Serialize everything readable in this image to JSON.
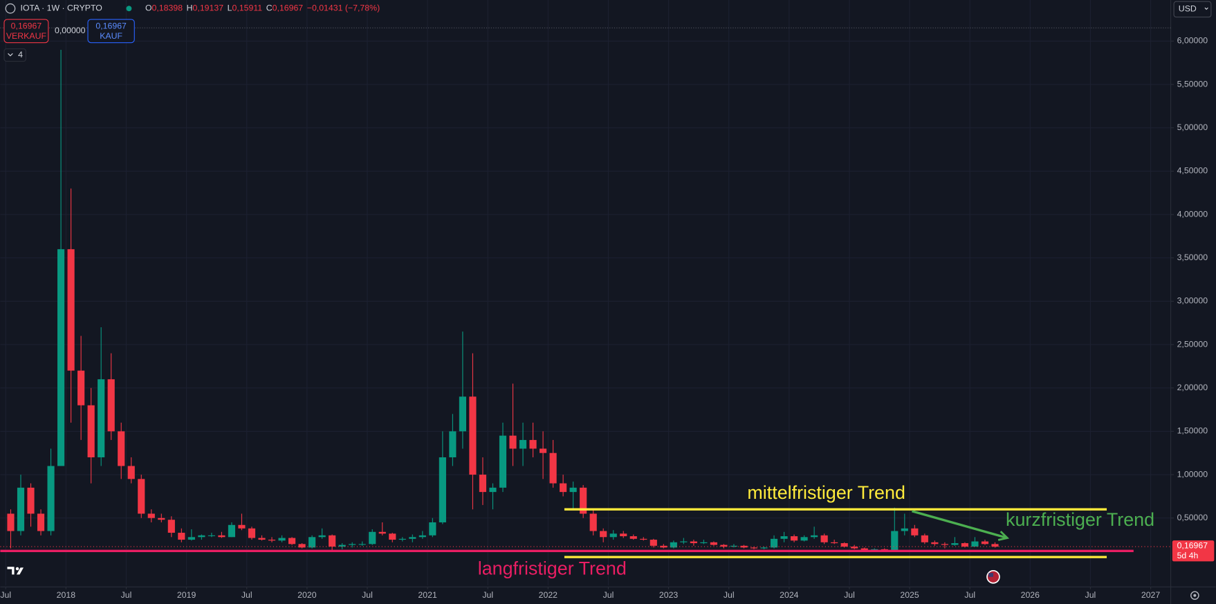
{
  "header": {
    "symbol": "IOTA · 1W · CRYPTO",
    "ohlc": [
      {
        "key": "O",
        "value": "0,18398"
      },
      {
        "key": "H",
        "value": "0,19137"
      },
      {
        "key": "L",
        "value": "0,15911"
      },
      {
        "key": "C",
        "value": "0,16967"
      }
    ],
    "change": "−0,01431 (−7,78%)",
    "sell": {
      "price": "0,16967",
      "label": "VERKAUF"
    },
    "spread": "0,00000",
    "buy": {
      "price": "0,16967",
      "label": "KAUF"
    },
    "indicators": "4",
    "currency": "USD"
  },
  "chart_data": {
    "type": "candlestick",
    "up_color": "#089981",
    "down_color": "#f23645",
    "grid": true,
    "xlim": [
      "2017-06-15",
      "2027-03-01"
    ],
    "xticks": [
      {
        "value": "2017-07-01",
        "label": "Jul"
      },
      {
        "value": "2018-01-01",
        "label": "2018"
      },
      {
        "value": "2018-07-01",
        "label": "Jul"
      },
      {
        "value": "2019-01-01",
        "label": "2019"
      },
      {
        "value": "2019-07-01",
        "label": "Jul"
      },
      {
        "value": "2020-01-01",
        "label": "2020"
      },
      {
        "value": "2020-07-01",
        "label": "Jul"
      },
      {
        "value": "2021-01-01",
        "label": "2021"
      },
      {
        "value": "2021-07-01",
        "label": "Jul"
      },
      {
        "value": "2022-01-01",
        "label": "2022"
      },
      {
        "value": "2022-07-01",
        "label": "Jul"
      },
      {
        "value": "2023-01-01",
        "label": "2023"
      },
      {
        "value": "2023-07-01",
        "label": "Jul"
      },
      {
        "value": "2024-01-01",
        "label": "2024"
      },
      {
        "value": "2024-07-01",
        "label": "Jul"
      },
      {
        "value": "2025-01-01",
        "label": "2025"
      },
      {
        "value": "2025-07-01",
        "label": "Jul"
      },
      {
        "value": "2026-01-01",
        "label": "2026"
      },
      {
        "value": "2026-07-01",
        "label": "Jul"
      },
      {
        "value": "2027-01-01",
        "label": "2027"
      }
    ],
    "ylim": [
      -0.277,
      6.474
    ],
    "yticks": [
      {
        "value": 0.5,
        "label": "0,50000"
      },
      {
        "value": 1,
        "label": "1,00000"
      },
      {
        "value": 1.5,
        "label": "1,50000"
      },
      {
        "value": 2,
        "label": "2,00000"
      },
      {
        "value": 2.5,
        "label": "2,50000"
      },
      {
        "value": 3,
        "label": "3,00000"
      },
      {
        "value": 3.5,
        "label": "3,50000"
      },
      {
        "value": 4,
        "label": "4,00000"
      },
      {
        "value": 4.5,
        "label": "4,50000"
      },
      {
        "value": 5,
        "label": "5,00000"
      },
      {
        "value": 5.5,
        "label": "5,50000"
      },
      {
        "value": 6,
        "label": "6,00000"
      }
    ],
    "x": [
      "2017-07",
      "2017-08",
      "2017-09",
      "2017-10",
      "2017-11",
      "2017-12",
      "2018-01",
      "2018-02",
      "2018-03",
      "2018-04",
      "2018-05",
      "2018-06",
      "2018-07",
      "2018-08",
      "2018-09",
      "2018-10",
      "2018-11",
      "2018-12",
      "2019-01",
      "2019-02",
      "2019-03",
      "2019-04",
      "2019-05",
      "2019-06",
      "2019-07",
      "2019-08",
      "2019-09",
      "2019-10",
      "2019-11",
      "2019-12",
      "2020-01",
      "2020-02",
      "2020-03",
      "2020-04",
      "2020-05",
      "2020-06",
      "2020-07",
      "2020-08",
      "2020-09",
      "2020-10",
      "2020-11",
      "2020-12",
      "2021-01",
      "2021-02",
      "2021-03",
      "2021-04",
      "2021-05",
      "2021-06",
      "2021-07",
      "2021-08",
      "2021-09",
      "2021-10",
      "2021-11",
      "2021-12",
      "2022-01",
      "2022-02",
      "2022-03",
      "2022-04",
      "2022-05",
      "2022-06",
      "2022-07",
      "2022-08",
      "2022-09",
      "2022-10",
      "2022-11",
      "2022-12",
      "2023-01",
      "2023-02",
      "2023-03",
      "2023-04",
      "2023-05",
      "2023-06",
      "2023-07",
      "2023-08",
      "2023-09",
      "2023-10",
      "2023-11",
      "2023-12",
      "2024-01",
      "2024-02",
      "2024-03",
      "2024-04",
      "2024-05",
      "2024-06",
      "2024-07",
      "2024-08",
      "2024-09",
      "2024-10",
      "2024-11",
      "2024-12",
      "2025-01",
      "2025-02",
      "2025-03",
      "2025-04",
      "2025-05",
      "2025-06",
      "2025-07",
      "2025-08",
      "2025-09"
    ],
    "open": [
      0.55,
      0.35,
      0.85,
      0.55,
      0.35,
      1.1,
      3.6,
      2.2,
      1.8,
      1.2,
      2.1,
      1.5,
      1.1,
      0.95,
      0.55,
      0.5,
      0.48,
      0.33,
      0.25,
      0.28,
      0.3,
      0.3,
      0.28,
      0.42,
      0.38,
      0.27,
      0.25,
      0.24,
      0.27,
      0.2,
      0.16,
      0.28,
      0.3,
      0.17,
      0.19,
      0.2,
      0.2,
      0.34,
      0.32,
      0.25,
      0.26,
      0.28,
      0.3,
      0.45,
      1.2,
      1.5,
      1.9,
      1.0,
      0.8,
      0.85,
      1.45,
      1.3,
      1.4,
      1.3,
      1.25,
      0.9,
      0.8,
      0.85,
      0.55,
      0.35,
      0.28,
      0.32,
      0.29,
      0.26,
      0.25,
      0.18,
      0.16,
      0.22,
      0.23,
      0.21,
      0.22,
      0.19,
      0.17,
      0.18,
      0.16,
      0.15,
      0.16,
      0.26,
      0.29,
      0.24,
      0.28,
      0.3,
      0.22,
      0.21,
      0.17,
      0.15,
      0.13,
      0.14,
      0.13,
      0.35,
      0.38,
      0.3,
      0.22,
      0.2,
      0.19,
      0.21,
      0.17,
      0.23,
      0.2
    ],
    "high": [
      0.6,
      1.0,
      0.9,
      0.6,
      1.3,
      5.9,
      4.3,
      2.6,
      2.0,
      2.7,
      2.4,
      1.6,
      1.2,
      1.0,
      0.6,
      0.55,
      0.52,
      0.38,
      0.37,
      0.31,
      0.33,
      0.34,
      0.45,
      0.55,
      0.4,
      0.3,
      0.28,
      0.3,
      0.28,
      0.21,
      0.3,
      0.38,
      0.31,
      0.21,
      0.22,
      0.23,
      0.37,
      0.45,
      0.33,
      0.28,
      0.31,
      0.35,
      0.5,
      1.5,
      1.7,
      2.65,
      2.4,
      1.2,
      0.9,
      1.6,
      2.05,
      1.6,
      1.6,
      1.5,
      1.4,
      1.0,
      0.92,
      0.88,
      0.6,
      0.38,
      0.36,
      0.35,
      0.31,
      0.28,
      0.26,
      0.2,
      0.24,
      0.27,
      0.25,
      0.25,
      0.23,
      0.2,
      0.2,
      0.19,
      0.17,
      0.17,
      0.3,
      0.34,
      0.31,
      0.3,
      0.4,
      0.32,
      0.25,
      0.22,
      0.19,
      0.16,
      0.15,
      0.15,
      0.62,
      0.55,
      0.42,
      0.32,
      0.24,
      0.22,
      0.28,
      0.22,
      0.28,
      0.25,
      0.22
    ],
    "low": [
      0.15,
      0.3,
      0.4,
      0.3,
      0.3,
      1.1,
      1.6,
      1.4,
      0.9,
      1.1,
      1.4,
      0.95,
      0.9,
      0.5,
      0.45,
      0.45,
      0.28,
      0.22,
      0.24,
      0.25,
      0.28,
      0.27,
      0.28,
      0.36,
      0.25,
      0.24,
      0.22,
      0.22,
      0.19,
      0.15,
      0.15,
      0.26,
      0.12,
      0.14,
      0.16,
      0.18,
      0.19,
      0.3,
      0.22,
      0.23,
      0.22,
      0.26,
      0.28,
      0.43,
      1.1,
      1.3,
      0.6,
      0.65,
      0.6,
      0.8,
      1.1,
      1.1,
      1.2,
      0.95,
      0.85,
      0.75,
      0.6,
      0.5,
      0.3,
      0.22,
      0.25,
      0.27,
      0.25,
      0.24,
      0.16,
      0.15,
      0.15,
      0.2,
      0.18,
      0.2,
      0.18,
      0.15,
      0.16,
      0.15,
      0.14,
      0.14,
      0.15,
      0.22,
      0.22,
      0.23,
      0.26,
      0.2,
      0.2,
      0.16,
      0.14,
      0.11,
      0.12,
      0.12,
      0.12,
      0.3,
      0.28,
      0.2,
      0.18,
      0.15,
      0.18,
      0.16,
      0.17,
      0.19,
      0.159
    ],
    "close": [
      0.35,
      0.85,
      0.55,
      0.35,
      1.1,
      3.6,
      2.2,
      1.8,
      1.2,
      2.1,
      1.5,
      1.1,
      0.95,
      0.55,
      0.5,
      0.48,
      0.33,
      0.25,
      0.28,
      0.3,
      0.3,
      0.28,
      0.42,
      0.38,
      0.27,
      0.25,
      0.24,
      0.27,
      0.2,
      0.16,
      0.28,
      0.3,
      0.17,
      0.19,
      0.2,
      0.2,
      0.34,
      0.32,
      0.25,
      0.26,
      0.28,
      0.3,
      0.45,
      1.2,
      1.5,
      1.9,
      1.0,
      0.8,
      0.85,
      1.45,
      1.3,
      1.4,
      1.3,
      1.25,
      0.9,
      0.8,
      0.85,
      0.55,
      0.35,
      0.28,
      0.32,
      0.29,
      0.26,
      0.25,
      0.18,
      0.16,
      0.22,
      0.23,
      0.21,
      0.22,
      0.19,
      0.17,
      0.18,
      0.16,
      0.15,
      0.16,
      0.26,
      0.29,
      0.24,
      0.28,
      0.3,
      0.22,
      0.21,
      0.17,
      0.15,
      0.13,
      0.14,
      0.13,
      0.35,
      0.38,
      0.3,
      0.22,
      0.2,
      0.19,
      0.21,
      0.17,
      0.23,
      0.2,
      0.16967
    ],
    "last_price": {
      "value": 0.16967,
      "label": "0,16967"
    },
    "countdown": "5d 4h",
    "trend_lines": [
      {
        "label": "mittelfristiger Trend",
        "color": "#ffeb3b",
        "arrow": false,
        "lines": [
          {
            "x": [
              "2022-02-20",
              "2026-08-20"
            ],
            "y": [
              0.6,
              0.6
            ]
          },
          {
            "x": [
              "2022-02-20",
              "2026-08-20"
            ],
            "y": [
              0.05,
              0.05
            ]
          }
        ]
      },
      {
        "label": "kurzfristiger Trend",
        "color": "#4caf50",
        "arrow": true,
        "lines": [
          {
            "x": [
              "2025-01-08",
              "2025-10-23"
            ],
            "y": [
              0.58,
              0.27
            ]
          }
        ]
      },
      {
        "label": "langfristiger Trend",
        "color": "#e91e63",
        "arrow": false,
        "lines": [
          {
            "x": [
              "2017-06-15",
              "2026-11-10"
            ],
            "y": [
              0.12,
              0.12
            ]
          }
        ]
      }
    ]
  }
}
